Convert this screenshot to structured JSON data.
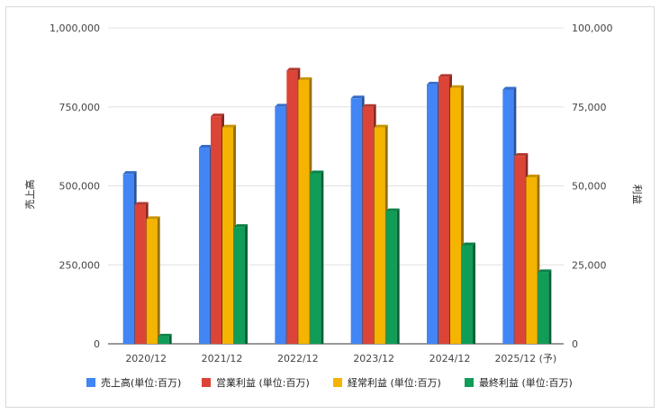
{
  "chart_data": {
    "type": "bar",
    "categories": [
      "2020/12",
      "2021/12",
      "2022/12",
      "2023/12",
      "2024/12",
      "2025/12 (予)"
    ],
    "series": [
      {
        "name": "売上高(単位:百万)",
        "axis": "left",
        "color": "#4285f4",
        "values": [
          538000,
          621000,
          751000,
          777000,
          821000,
          805000
        ]
      },
      {
        "name": "営業利益 (単位:百万)",
        "axis": "right",
        "color": "#db4437",
        "values": [
          44000,
          72000,
          86500,
          75000,
          84500,
          59500
        ]
      },
      {
        "name": "経常利益 (単位:百万)",
        "axis": "right",
        "color": "#f4b400",
        "values": [
          39500,
          68500,
          83500,
          68500,
          81000,
          52700
        ]
      },
      {
        "name": "最終利益 (単位:百万)",
        "axis": "right",
        "color": "#0f9d58",
        "values": [
          2300,
          37000,
          54000,
          42000,
          31200,
          22700
        ]
      }
    ],
    "ylabel": "売上高",
    "y2label": "利益",
    "ylim": [
      0,
      1000000
    ],
    "y2lim": [
      0,
      100000
    ],
    "yticks": [
      "0",
      "250,000",
      "500,000",
      "750,000",
      "1,000,000"
    ],
    "y2ticks": [
      "0",
      "25,000",
      "50,000",
      "75,000",
      "100,000"
    ],
    "grid": true,
    "legend": "bottom"
  }
}
